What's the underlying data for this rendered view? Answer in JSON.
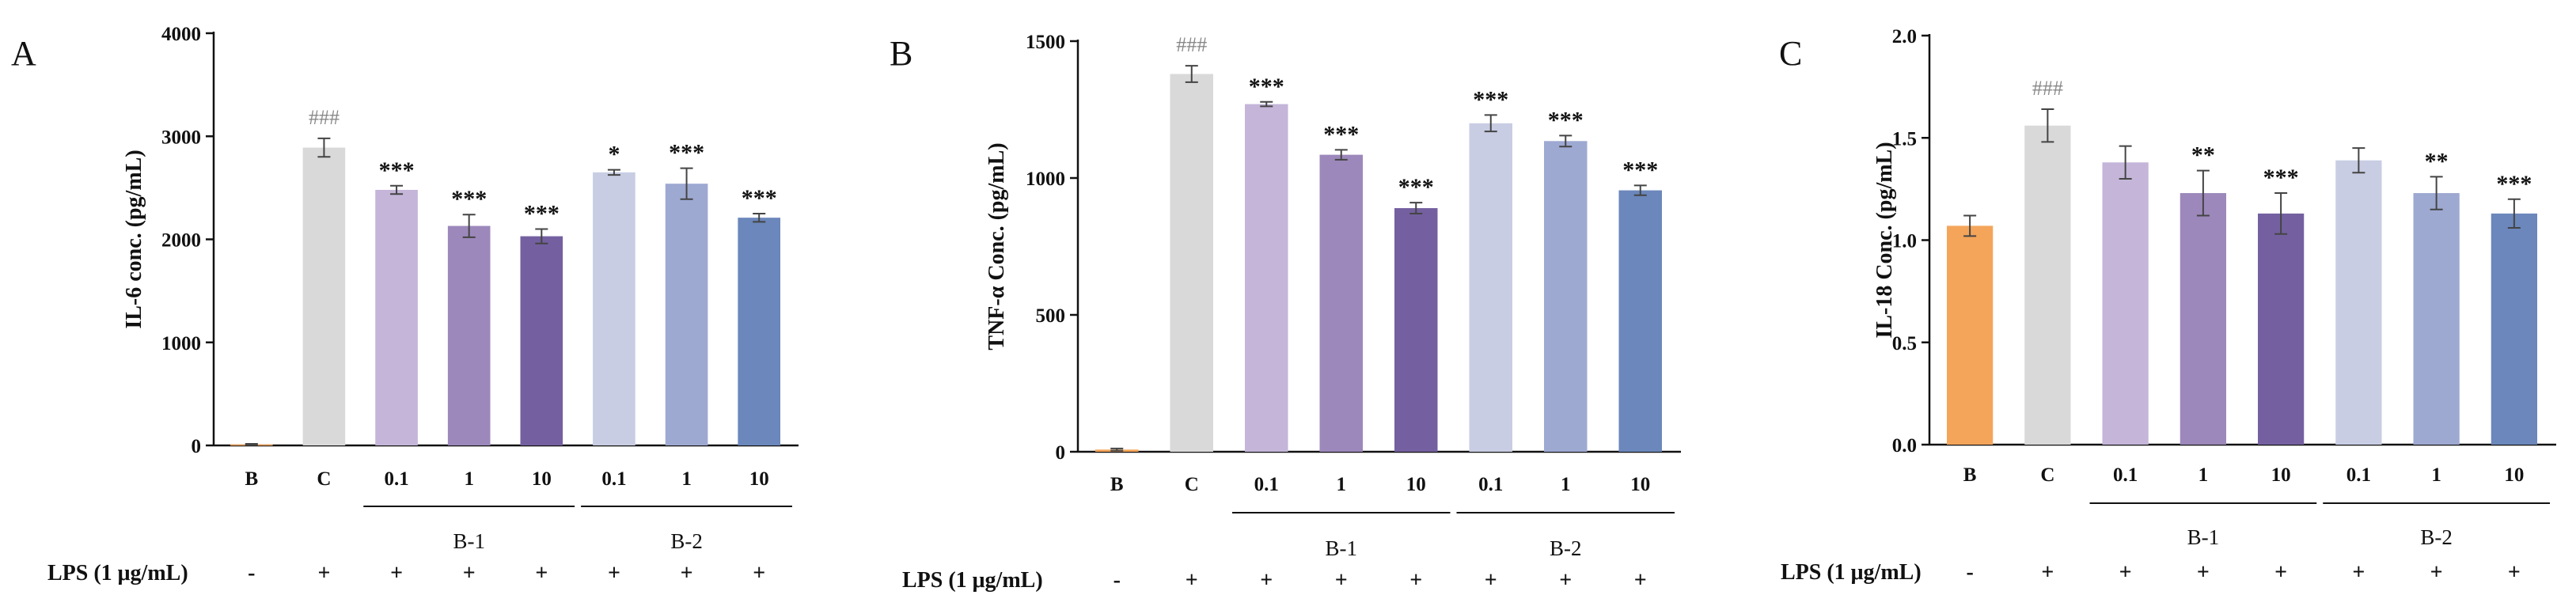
{
  "treatment": {
    "label": "LPS (1 μg/mL)",
    "signs": [
      "-",
      "+",
      "+",
      "+",
      "+",
      "+",
      "+",
      "+"
    ]
  },
  "chart_data": [
    {
      "type": "bar",
      "panel": "A",
      "ylabel": "IL-6 conc. (pg/mL)",
      "ylim": [
        0,
        4000
      ],
      "yticks": [
        "0",
        "1000",
        "2000",
        "3000",
        "4000"
      ],
      "categories": [
        "B",
        "C",
        "0.1",
        "1",
        "10",
        "0.1",
        "1",
        "10"
      ],
      "values": [
        10,
        2890,
        2480,
        2130,
        2030,
        2650,
        2540,
        2210
      ],
      "errors": [
        5,
        90,
        40,
        110,
        70,
        25,
        150,
        40
      ],
      "colors": [
        "#f4a55a",
        "#d9d9d9",
        "#c4b5d9",
        "#9c88bb",
        "#7460a0",
        "#c8cde3",
        "#9ea9d2",
        "#6b87bb"
      ],
      "significance": [
        "",
        "###",
        "***",
        "***",
        "***",
        "*",
        "***",
        "***"
      ],
      "groups": [
        {
          "label": "B-1",
          "from": 2,
          "to": 4
        },
        {
          "label": "B-2",
          "from": 5,
          "to": 7
        }
      ]
    },
    {
      "type": "bar",
      "panel": "B",
      "ylabel": "TNF-α Conc. (pg/mL)",
      "ylim": [
        0,
        1500
      ],
      "yticks": [
        "0",
        "500",
        "1000",
        "1500"
      ],
      "categories": [
        "B",
        "C",
        "0.1",
        "1",
        "10",
        "0.1",
        "1",
        "10"
      ],
      "values": [
        8,
        1380,
        1270,
        1085,
        890,
        1200,
        1135,
        955
      ],
      "errors": [
        4,
        30,
        8,
        18,
        20,
        30,
        20,
        18
      ],
      "colors": [
        "#f4a55a",
        "#d9d9d9",
        "#c4b5d9",
        "#9c88bb",
        "#7460a0",
        "#c8cde3",
        "#9ea9d2",
        "#6b87bb"
      ],
      "significance": [
        "",
        "###",
        "***",
        "***",
        "***",
        "***",
        "***",
        "***"
      ],
      "groups": [
        {
          "label": "B-1",
          "from": 2,
          "to": 4
        },
        {
          "label": "B-2",
          "from": 5,
          "to": 7
        }
      ]
    },
    {
      "type": "bar",
      "panel": "C",
      "ylabel": "IL-18 Conc. (pg/mL)",
      "ylim": [
        0,
        2.0
      ],
      "yticks": [
        "0.0",
        "0.5",
        "1.0",
        "1.5",
        "2.0"
      ],
      "categories": [
        "B",
        "C",
        "0.1",
        "1",
        "10",
        "0.1",
        "1",
        "10"
      ],
      "values": [
        1.07,
        1.56,
        1.38,
        1.23,
        1.13,
        1.39,
        1.23,
        1.13
      ],
      "errors": [
        0.05,
        0.08,
        0.08,
        0.11,
        0.1,
        0.06,
        0.08,
        0.07
      ],
      "colors": [
        "#f4a55a",
        "#d9d9d9",
        "#c4b5d9",
        "#9c88bb",
        "#7460a0",
        "#c8cde3",
        "#9ea9d2",
        "#6b87bb"
      ],
      "significance": [
        "",
        "###",
        "",
        "**",
        "***",
        "",
        "**",
        "***"
      ],
      "groups": [
        {
          "label": "B-1",
          "from": 2,
          "to": 4
        },
        {
          "label": "B-2",
          "from": 5,
          "to": 7
        }
      ]
    }
  ]
}
